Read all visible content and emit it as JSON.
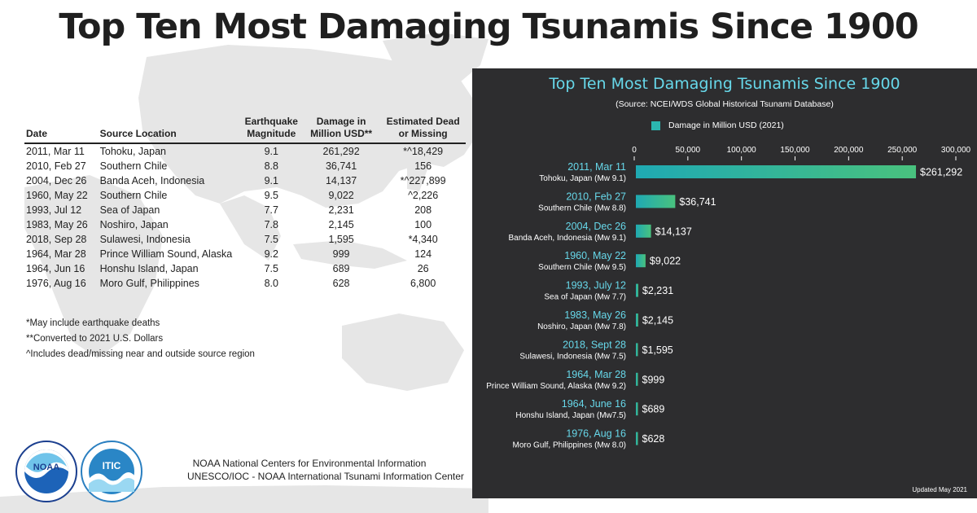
{
  "page": {
    "title": "Top Ten Most Damaging Tsunamis Since 1900"
  },
  "table": {
    "headers": {
      "date": "Date",
      "location": "Source Location",
      "magnitude": [
        "Earthquake",
        "Magnitude"
      ],
      "damage": [
        "Damage in",
        "Million USD**"
      ],
      "dead": [
        "Estimated Dead",
        "or Missing"
      ]
    },
    "rows": [
      {
        "date": "2011, Mar 11",
        "location": "Tohoku, Japan",
        "magnitude": "9.1",
        "damage": "261,292",
        "dead": "*^18,429"
      },
      {
        "date": "2010, Feb 27",
        "location": "Southern Chile",
        "magnitude": "8.8",
        "damage": "36,741",
        "dead": "156"
      },
      {
        "date": "2004, Dec 26",
        "location": "Banda Aceh, Indonesia",
        "magnitude": "9.1",
        "damage": "14,137",
        "dead": "*^227,899"
      },
      {
        "date": "1960, May 22",
        "location": "Southern Chile",
        "magnitude": "9.5",
        "damage": "9,022",
        "dead": "^2,226"
      },
      {
        "date": "1993, Jul 12",
        "location": "Sea of Japan",
        "magnitude": "7.7",
        "damage": "2,231",
        "dead": "208"
      },
      {
        "date": "1983, May 26",
        "location": "Noshiro, Japan",
        "magnitude": "7.8",
        "damage": "2,145",
        "dead": "100"
      },
      {
        "date": "2018, Sep 28",
        "location": "Sulawesi, Indonesia",
        "magnitude": "7.5",
        "damage": "1,595",
        "dead": "*4,340"
      },
      {
        "date": "1964, Mar 28",
        "location": "Prince William Sound, Alaska",
        "magnitude": "9.2",
        "damage": "999",
        "dead": "124"
      },
      {
        "date": "1964, Jun 16",
        "location": "Honshu Island, Japan",
        "magnitude": "7.5",
        "damage": "689",
        "dead": "26"
      },
      {
        "date": "1976, Aug 16",
        "location": "Moro Gulf, Philippines",
        "magnitude": "8.0",
        "damage": "628",
        "dead": "6,800"
      }
    ],
    "notes": [
      "*May include earthquake deaths",
      "**Converted to 2021 U.S. Dollars",
      "^Includes dead/missing near and outside source region"
    ]
  },
  "logos": {
    "noaa_text": "NOAA",
    "itic_text": "ITIC"
  },
  "credits": [
    "NOAA National Centers for Environmental Information",
    "UNESCO/IOC - NOAA International Tsunami Information Center"
  ],
  "chart_data": {
    "type": "bar",
    "orientation": "horizontal",
    "title": "Top Ten Most Damaging Tsunamis Since 1900",
    "subtitle": "(Source: NCEI/WDS Global Historical Tsunami Database)",
    "legend": "Damage in Million USD (2021)",
    "legend_position": "top",
    "categories": [
      {
        "date": "2011, Mar 11",
        "place": "Tohoku, Japan (Mw 9.1)"
      },
      {
        "date": "2010, Feb 27",
        "place": "Southern Chile (Mw 8.8)"
      },
      {
        "date": "2004, Dec 26",
        "place": "Banda Aceh, Indonesia (Mw 9.1)"
      },
      {
        "date": "1960, May 22",
        "place": "Southern Chile (Mw 9.5)"
      },
      {
        "date": "1993, July 12",
        "place": "Sea of Japan (Mw 7.7)"
      },
      {
        "date": "1983, May 26",
        "place": "Noshiro, Japan (Mw 7.8)"
      },
      {
        "date": "2018, Sept 28",
        "place": "Sulawesi, Indonesia (Mw 7.5)"
      },
      {
        "date": "1964, Mar 28",
        "place": "Prince William Sound, Alaska (Mw 9.2)"
      },
      {
        "date": "1964, June 16",
        "place": "Honshu Island, Japan (Mw7.5)"
      },
      {
        "date": "1976, Aug 16",
        "place": "Moro Gulf, Philippines (Mw 8.0)"
      }
    ],
    "values": [
      261292,
      36741,
      14137,
      9022,
      2231,
      2145,
      1595,
      999,
      689,
      628
    ],
    "value_labels": [
      "$261,292",
      "$36,741",
      "$14,137",
      "$9,022",
      "$2,231",
      "$2,145",
      "$1,595",
      "$999",
      "$689",
      "$628"
    ],
    "xlim": [
      0,
      300000
    ],
    "xticks": [
      0,
      50000,
      100000,
      150000,
      200000,
      250000,
      300000
    ],
    "xtick_labels": [
      "0",
      "50,000",
      "100,000",
      "150,000",
      "200,000",
      "250,000",
      "300,000"
    ],
    "xaxis_position": "top",
    "grid": false,
    "colors": {
      "panel_bg": "#2d2d2f",
      "title": "#67d8ea",
      "date_label": "#67d8ea",
      "place_label": "#ffffff",
      "bar_start": "#1fa9b3",
      "bar_end": "#49c27e"
    },
    "updated": "Updated May 2021"
  }
}
